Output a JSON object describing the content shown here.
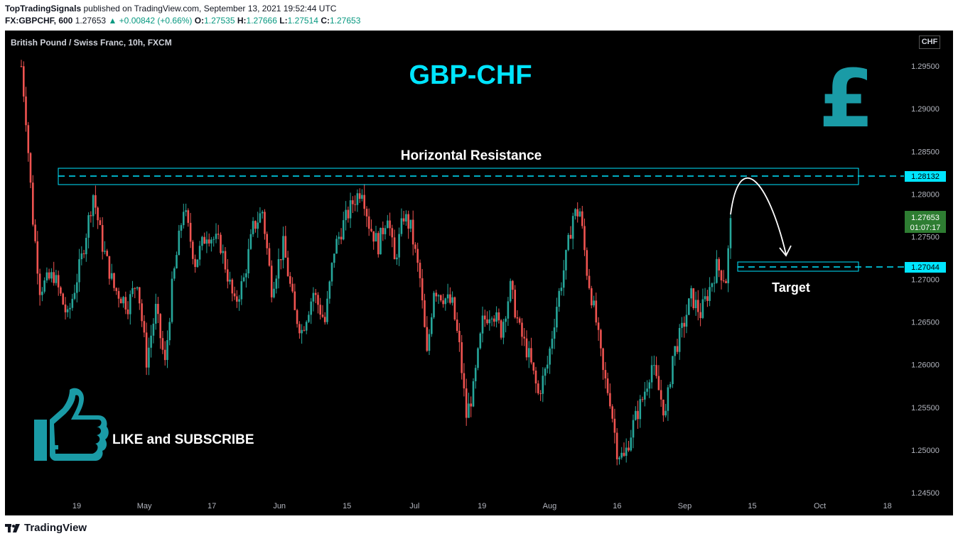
{
  "header": {
    "publisher": "TopTradingSignals",
    "published_text": "published on TradingView.com, September 13, 2021 19:52:44 UTC",
    "symbol_line": "FX:GBPCHF, 600",
    "last": "1.27653",
    "change": "+0.00842 (+0.66%)",
    "o_label": "O:",
    "o": "1.27535",
    "h_label": "H:",
    "h": "1.27666",
    "l_label": "L:",
    "l": "1.27514",
    "c_label": "C:",
    "c": "1.27653"
  },
  "chart_title_bar": "British Pound / Swiss Franc, 10h, FXCM",
  "currency_button": "CHF",
  "footer": {
    "brand": "TradingView"
  },
  "colors": {
    "up": "#26a69a",
    "down": "#ef5350",
    "accent": "#00e5ff",
    "annot": "#1a9ba6",
    "price_tag": "#2e7d32"
  },
  "annotations": {
    "title": "GBP-CHF",
    "resistance_label": "Horizontal Resistance",
    "target_label": "Target",
    "cta": "LIKE and SUBSCRIBE",
    "resistance_price": "1.28132",
    "target_price": "1.27044",
    "current_price": "1.27653",
    "countdown": "01:07:17",
    "pound_icon": "pound-sign-icon",
    "thumbs_icon": "thumbs-up-icon"
  },
  "chart_data": {
    "type": "candlestick",
    "title": "British Pound / Swiss Franc, 10h, FXCM",
    "y_ticks": [
      "1.29500",
      "1.29000",
      "1.28500",
      "1.28000",
      "1.27500",
      "1.27000",
      "1.26500",
      "1.26000",
      "1.25500",
      "1.25000",
      "1.24500"
    ],
    "x_ticks": [
      "19",
      "May",
      "17",
      "Jun",
      "15",
      "Jul",
      "19",
      "Aug",
      "16",
      "Sep",
      "15",
      "Oct",
      "18"
    ],
    "ylim": [
      1.2445,
      1.299
    ],
    "resistance_level": 1.28132,
    "target_level": 1.27044,
    "last_price": 1.27653,
    "close_path": [
      {
        "t": 0,
        "p": 1.295
      },
      {
        "t": 2,
        "p": 1.289
      },
      {
        "t": 5,
        "p": 1.277
      },
      {
        "t": 8,
        "p": 1.269
      },
      {
        "t": 14,
        "p": 1.2705
      },
      {
        "t": 20,
        "p": 1.2655
      },
      {
        "t": 26,
        "p": 1.2725
      },
      {
        "t": 31,
        "p": 1.28
      },
      {
        "t": 35,
        "p": 1.274
      },
      {
        "t": 40,
        "p": 1.269
      },
      {
        "t": 46,
        "p": 1.267
      },
      {
        "t": 50,
        "p": 1.27
      },
      {
        "t": 54,
        "p": 1.2605
      },
      {
        "t": 58,
        "p": 1.2665
      },
      {
        "t": 62,
        "p": 1.26
      },
      {
        "t": 65,
        "p": 1.269
      },
      {
        "t": 70,
        "p": 1.2785
      },
      {
        "t": 75,
        "p": 1.272
      },
      {
        "t": 80,
        "p": 1.2755
      },
      {
        "t": 86,
        "p": 1.274
      },
      {
        "t": 92,
        "p": 1.267
      },
      {
        "t": 96,
        "p": 1.27
      },
      {
        "t": 100,
        "p": 1.276
      },
      {
        "t": 104,
        "p": 1.278
      },
      {
        "t": 108,
        "p": 1.269
      },
      {
        "t": 113,
        "p": 1.274
      },
      {
        "t": 118,
        "p": 1.266
      },
      {
        "t": 121,
        "p": 1.264
      },
      {
        "t": 126,
        "p": 1.2685
      },
      {
        "t": 131,
        "p": 1.265
      },
      {
        "t": 135,
        "p": 1.2735
      },
      {
        "t": 139,
        "p": 1.2765
      },
      {
        "t": 143,
        "p": 1.279
      },
      {
        "t": 147,
        "p": 1.2808
      },
      {
        "t": 150,
        "p": 1.2765
      },
      {
        "t": 154,
        "p": 1.274
      },
      {
        "t": 158,
        "p": 1.2778
      },
      {
        "t": 161,
        "p": 1.272
      },
      {
        "t": 165,
        "p": 1.2775
      },
      {
        "t": 168,
        "p": 1.276
      },
      {
        "t": 172,
        "p": 1.27
      },
      {
        "t": 175,
        "p": 1.261
      },
      {
        "t": 178,
        "p": 1.269
      },
      {
        "t": 182,
        "p": 1.268
      },
      {
        "t": 186,
        "p": 1.267
      },
      {
        "t": 189,
        "p": 1.262
      },
      {
        "t": 192,
        "p": 1.254
      },
      {
        "t": 195,
        "p": 1.257
      },
      {
        "t": 199,
        "p": 1.265
      },
      {
        "t": 203,
        "p": 1.2665
      },
      {
        "t": 207,
        "p": 1.264
      },
      {
        "t": 211,
        "p": 1.269
      },
      {
        "t": 215,
        "p": 1.264
      },
      {
        "t": 219,
        "p": 1.261
      },
      {
        "t": 223,
        "p": 1.2565
      },
      {
        "t": 227,
        "p": 1.26
      },
      {
        "t": 231,
        "p": 1.267
      },
      {
        "t": 235,
        "p": 1.2725
      },
      {
        "t": 238,
        "p": 1.2775
      },
      {
        "t": 241,
        "p": 1.278
      },
      {
        "t": 244,
        "p": 1.271
      },
      {
        "t": 248,
        "p": 1.265
      },
      {
        "t": 251,
        "p": 1.259
      },
      {
        "t": 254,
        "p": 1.256
      },
      {
        "t": 257,
        "p": 1.25
      },
      {
        "t": 260,
        "p": 1.249
      },
      {
        "t": 264,
        "p": 1.253
      },
      {
        "t": 268,
        "p": 1.256
      },
      {
        "t": 272,
        "p": 1.26
      },
      {
        "t": 275,
        "p": 1.257
      },
      {
        "t": 278,
        "p": 1.254
      },
      {
        "t": 281,
        "p": 1.261
      },
      {
        "t": 285,
        "p": 1.264
      },
      {
        "t": 289,
        "p": 1.268
      },
      {
        "t": 293,
        "p": 1.266
      },
      {
        "t": 297,
        "p": 1.269
      },
      {
        "t": 300,
        "p": 1.2715
      },
      {
        "t": 304,
        "p": 1.27
      },
      {
        "t": 306,
        "p": 1.2765
      }
    ]
  }
}
